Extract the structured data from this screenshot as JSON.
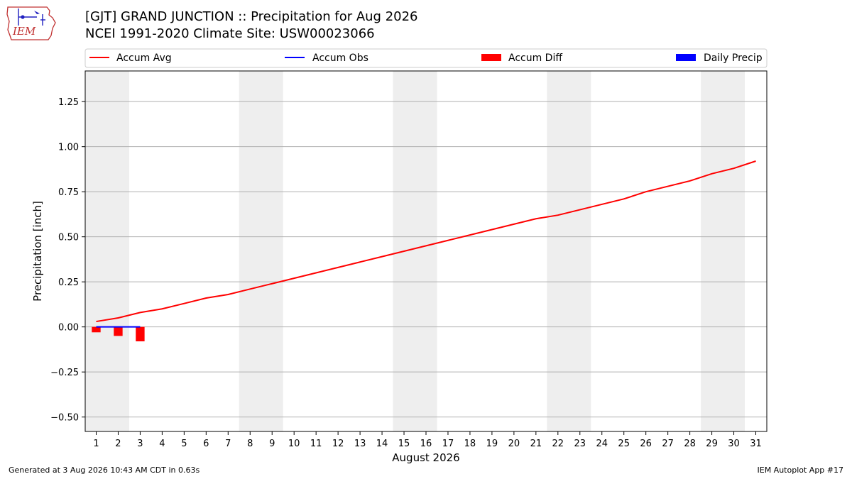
{
  "header": {
    "title_line1": "[GJT] GRAND JUNCTION :: Precipitation for Aug 2026",
    "title_line2": "NCEI 1991-2020 Climate Site: USW00023066",
    "logo_text": "IEM"
  },
  "footer": {
    "left": "Generated at 3 Aug 2026 10:43 AM CDT in 0.63s",
    "right": "IEM Autoplot App #17"
  },
  "chart_data": {
    "type": "line",
    "xlabel": "August 2026",
    "ylabel": "Precipitation [inch]",
    "x": [
      1,
      2,
      3,
      4,
      5,
      6,
      7,
      8,
      9,
      10,
      11,
      12,
      13,
      14,
      15,
      16,
      17,
      18,
      19,
      20,
      21,
      22,
      23,
      24,
      25,
      26,
      27,
      28,
      29,
      30,
      31
    ],
    "xlim": [
      0.5,
      31.5
    ],
    "ylim": [
      -0.58,
      1.42
    ],
    "yticks": [
      -0.5,
      -0.25,
      0.0,
      0.25,
      0.5,
      0.75,
      1.0,
      1.25
    ],
    "ytick_labels": [
      "−0.50",
      "−0.25",
      "0.00",
      "0.25",
      "0.50",
      "0.75",
      "1.00",
      "1.25"
    ],
    "grid": "horizontal",
    "weekend_bands": [
      [
        0.5,
        2.5
      ],
      [
        7.5,
        9.5
      ],
      [
        14.5,
        16.5
      ],
      [
        21.5,
        23.5
      ],
      [
        28.5,
        30.5
      ]
    ],
    "band_color": "#eeeeee",
    "legend": {
      "position": "top",
      "entries": [
        {
          "label": "Accum Avg",
          "kind": "line",
          "color": "#ff0000"
        },
        {
          "label": "Accum Obs",
          "kind": "line",
          "color": "#0000ff"
        },
        {
          "label": "Accum Diff",
          "kind": "patch",
          "color": "#ff0000"
        },
        {
          "label": "Daily Precip",
          "kind": "patch",
          "color": "#0000ff"
        }
      ]
    },
    "series": [
      {
        "name": "Accum Avg",
        "kind": "line",
        "color": "#ff0000",
        "x": [
          1,
          2,
          3,
          4,
          5,
          6,
          7,
          8,
          9,
          10,
          11,
          12,
          13,
          14,
          15,
          16,
          17,
          18,
          19,
          20,
          21,
          22,
          23,
          24,
          25,
          26,
          27,
          28,
          29,
          30,
          31
        ],
        "values": [
          0.03,
          0.05,
          0.08,
          0.1,
          0.13,
          0.16,
          0.18,
          0.21,
          0.24,
          0.27,
          0.3,
          0.33,
          0.36,
          0.39,
          0.42,
          0.45,
          0.48,
          0.51,
          0.54,
          0.57,
          0.6,
          0.62,
          0.65,
          0.68,
          0.71,
          0.75,
          0.78,
          0.81,
          0.85,
          0.88,
          0.92
        ]
      },
      {
        "name": "Accum Obs",
        "kind": "line",
        "color": "#0000ff",
        "x": [
          1,
          2,
          3
        ],
        "values": [
          0.0,
          0.0,
          0.0
        ]
      },
      {
        "name": "Accum Diff",
        "kind": "bar",
        "color": "#ff0000",
        "x": [
          1,
          2,
          3
        ],
        "values": [
          -0.03,
          -0.05,
          -0.08
        ]
      },
      {
        "name": "Daily Precip",
        "kind": "bar",
        "color": "#0000ff",
        "x": [
          1,
          2,
          3
        ],
        "values": [
          0.0,
          0.0,
          0.0
        ]
      }
    ]
  }
}
